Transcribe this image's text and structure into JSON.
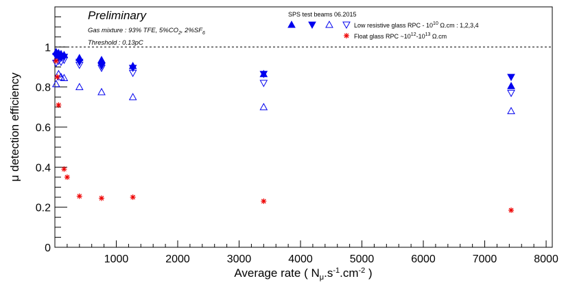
{
  "chart_data": {
    "type": "scatter",
    "xlim": [
      0,
      8100
    ],
    "ylim": [
      0,
      1.2
    ],
    "x_ticks": [
      1000,
      2000,
      3000,
      4000,
      5000,
      6000,
      7000,
      8000
    ],
    "y_ticks": [
      0,
      0.2,
      0.4,
      0.6,
      0.8,
      1
    ],
    "x_tick_labels": [
      "1000",
      "2000",
      "3000",
      "4000",
      "5000",
      "6000",
      "7000",
      "8000"
    ],
    "y_tick_labels": [
      "0",
      "0.2",
      "0.4",
      "0.6",
      "0.8",
      "1"
    ],
    "xlabel": {
      "pre": "Average rate ( N",
      "sub1": "μ",
      "mid1": ".s",
      "sup1": "-1",
      "mid2": ".cm",
      "sup2": "-2",
      "post": " )"
    },
    "ylabel": "μ detection efficiency",
    "reference_line": {
      "y": 1.0,
      "style": "dashed"
    },
    "annotations": {
      "preliminary": "Preliminary",
      "gas_pre": "Gas mixture : 93% TFE, 5%CO",
      "gas_sub1": "2",
      "gas_mid": ", 2%SF",
      "gas_sub2": "6",
      "threshold": "Threshold : 0.13pC"
    },
    "legend": {
      "header": "SPS test beams 06.2015",
      "low_pre": "Low resistive glass RPC - 10",
      "low_sup": "10",
      "low_post": " Ω.cm : 1,2,3,4",
      "float_pre": "Float glass RPC ~10",
      "float_sup1": "12",
      "float_mid": "-10",
      "float_sup2": "13",
      "float_post": " Ω.cm"
    },
    "series": [
      {
        "marker": "triangle-up-filled",
        "color": "#0000ee",
        "points": [
          [
            20,
            0.975
          ],
          [
            60,
            0.97
          ],
          [
            100,
            0.965
          ],
          [
            150,
            0.96
          ],
          [
            400,
            0.945
          ],
          [
            760,
            0.935
          ],
          [
            1270,
            0.905
          ],
          [
            3400,
            0.865
          ],
          [
            7430,
            0.805
          ]
        ]
      },
      {
        "marker": "triangle-down-filled",
        "color": "#0000ee",
        "points": [
          [
            20,
            0.955
          ],
          [
            60,
            0.95
          ],
          [
            100,
            0.945
          ],
          [
            150,
            0.95
          ],
          [
            400,
            0.925
          ],
          [
            760,
            0.905
          ],
          [
            1270,
            0.895
          ],
          [
            3400,
            0.865
          ],
          [
            7430,
            0.85
          ]
        ]
      },
      {
        "marker": "triangle-up-open",
        "color": "#0000ee",
        "points": [
          [
            20,
            0.815
          ],
          [
            60,
            0.865
          ],
          [
            100,
            0.85
          ],
          [
            150,
            0.845
          ],
          [
            400,
            0.8
          ],
          [
            760,
            0.775
          ],
          [
            1270,
            0.75
          ],
          [
            3400,
            0.7
          ],
          [
            7430,
            0.68
          ]
        ]
      },
      {
        "marker": "triangle-down-open",
        "color": "#0000ee",
        "points": [
          [
            20,
            0.92
          ],
          [
            60,
            0.93
          ],
          [
            100,
            0.925
          ],
          [
            150,
            0.935
          ],
          [
            400,
            0.91
          ],
          [
            760,
            0.895
          ],
          [
            1270,
            0.87
          ],
          [
            3400,
            0.82
          ],
          [
            7430,
            0.77
          ]
        ]
      },
      {
        "marker": "asterisk",
        "color": "#ee0000",
        "points": [
          [
            20,
            0.93
          ],
          [
            40,
            0.85
          ],
          [
            60,
            0.71
          ],
          [
            150,
            0.39
          ],
          [
            200,
            0.35
          ],
          [
            400,
            0.255
          ],
          [
            760,
            0.245
          ],
          [
            1270,
            0.25
          ],
          [
            3400,
            0.23
          ],
          [
            7430,
            0.185
          ]
        ]
      }
    ]
  }
}
